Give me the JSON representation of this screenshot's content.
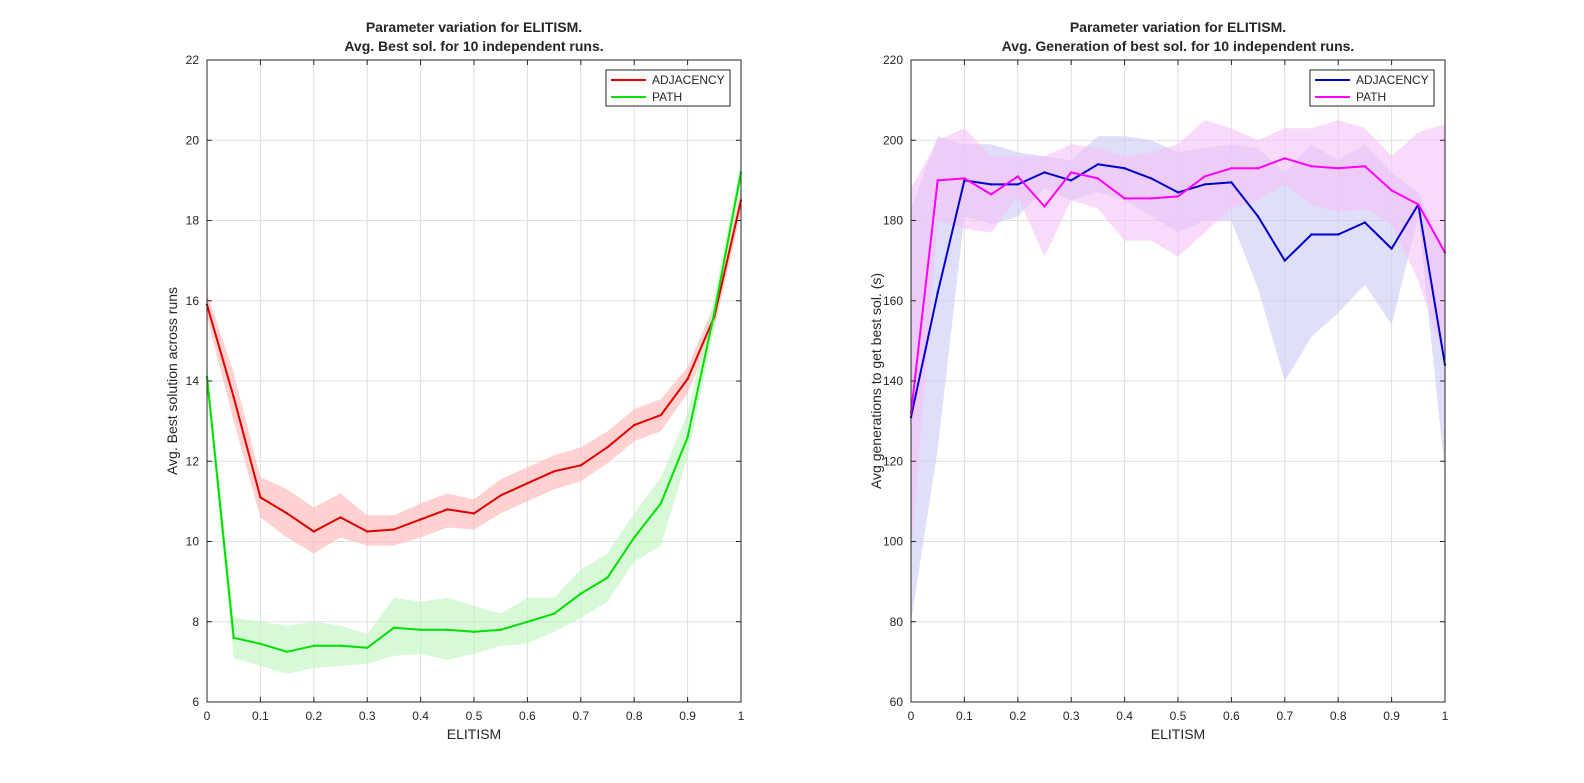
{
  "chart_data": [
    {
      "type": "line",
      "title": [
        "Parameter variation for ELITISM.",
        "Avg. Best sol. for 10 independent runs."
      ],
      "xlabel": "ELITISM",
      "ylabel": "Avg. Best solution across runs",
      "xlim": [
        0,
        1
      ],
      "ylim": [
        6,
        22
      ],
      "xticks": [
        0,
        0.1,
        0.2,
        0.3,
        0.4,
        0.5,
        0.6,
        0.7,
        0.8,
        0.9,
        1
      ],
      "yticks": [
        6,
        8,
        10,
        12,
        14,
        16,
        18,
        20,
        22
      ],
      "grid": true,
      "legend_position": "top-right",
      "x": [
        0,
        0.05,
        0.1,
        0.15,
        0.2,
        0.25,
        0.3,
        0.35,
        0.4,
        0.45,
        0.5,
        0.55,
        0.6,
        0.65,
        0.7,
        0.75,
        0.8,
        0.85,
        0.9,
        0.95,
        1
      ],
      "series": [
        {
          "name": "ADJACENCY",
          "color": "#e00000",
          "band_color": "#ffb3b3",
          "values": [
            15.9,
            13.6,
            11.1,
            10.7,
            10.25,
            10.6,
            10.25,
            10.3,
            10.55,
            10.8,
            10.7,
            11.15,
            11.45,
            11.75,
            11.9,
            12.35,
            12.9,
            13.15,
            14.05,
            15.6,
            18.5
          ],
          "upper": [
            16.2,
            14.2,
            11.6,
            11.3,
            10.85,
            11.2,
            10.65,
            10.65,
            10.95,
            11.2,
            11.05,
            11.55,
            11.85,
            12.15,
            12.35,
            12.75,
            13.3,
            13.55,
            14.35,
            15.9,
            18.8
          ],
          "lower": [
            15.6,
            13.0,
            10.6,
            10.1,
            9.7,
            10.1,
            9.9,
            9.9,
            10.1,
            10.35,
            10.3,
            10.7,
            11.0,
            11.3,
            11.5,
            11.95,
            12.5,
            12.75,
            13.7,
            15.3,
            18.2
          ]
        },
        {
          "name": "PATH",
          "color": "#00e000",
          "band_color": "#bdf5bd",
          "values": [
            14.1,
            7.6,
            7.45,
            7.25,
            7.4,
            7.4,
            7.35,
            7.85,
            7.8,
            7.8,
            7.75,
            7.8,
            8.0,
            8.2,
            8.7,
            9.1,
            10.1,
            10.95,
            12.6,
            15.7,
            19.2
          ],
          "upper": [
            14.4,
            8.1,
            8.0,
            7.9,
            8.0,
            7.9,
            7.7,
            8.6,
            8.5,
            8.6,
            8.4,
            8.2,
            8.6,
            8.6,
            9.3,
            9.7,
            10.7,
            11.6,
            13.2,
            16.1,
            19.5
          ],
          "lower": [
            13.8,
            7.1,
            6.9,
            6.7,
            6.85,
            6.9,
            6.95,
            7.15,
            7.2,
            7.05,
            7.2,
            7.4,
            7.45,
            7.75,
            8.1,
            8.5,
            9.5,
            9.9,
            12.1,
            15.3,
            18.9
          ]
        }
      ]
    },
    {
      "type": "line",
      "title": [
        "Parameter variation for ELITISM.",
        "Avg. Generation of best sol. for 10 independent runs."
      ],
      "xlabel": "ELITISM",
      "ylabel": "Avg generations to get best sol. (s)",
      "xlim": [
        0,
        1
      ],
      "ylim": [
        60,
        220
      ],
      "xticks": [
        0,
        0.1,
        0.2,
        0.3,
        0.4,
        0.5,
        0.6,
        0.7,
        0.8,
        0.9,
        1
      ],
      "yticks": [
        60,
        80,
        100,
        120,
        140,
        160,
        180,
        200,
        220
      ],
      "grid": true,
      "legend_position": "top-right",
      "x": [
        0,
        0.05,
        0.1,
        0.15,
        0.2,
        0.25,
        0.3,
        0.35,
        0.4,
        0.45,
        0.5,
        0.55,
        0.6,
        0.65,
        0.7,
        0.75,
        0.8,
        0.85,
        0.9,
        0.95,
        1
      ],
      "series": [
        {
          "name": "ADJACENCY",
          "color": "#0000cc",
          "band_color": "#c9c9f7",
          "values": [
            131,
            162,
            190,
            189,
            189,
            192,
            190,
            194,
            193,
            190.5,
            187,
            189,
            189.5,
            181,
            170,
            176.5,
            176.5,
            179.5,
            173,
            184,
            144
          ],
          "upper": [
            183,
            201,
            199,
            199,
            197,
            196,
            195,
            201,
            201,
            200,
            197,
            198,
            199,
            198,
            192,
            199,
            195,
            199,
            192,
            187,
            172
          ],
          "lower": [
            80,
            123,
            181,
            179,
            181,
            188,
            185,
            187,
            185,
            181,
            177,
            180,
            180,
            163,
            140,
            151,
            157,
            164,
            154,
            181,
            117
          ]
        },
        {
          "name": "PATH",
          "color": "#ff00ff",
          "band_color": "#f7c2f7",
          "values": [
            132,
            190,
            190.5,
            186.5,
            191,
            183.5,
            192,
            190.5,
            185.5,
            185.5,
            186,
            191,
            193,
            193,
            195.5,
            193.5,
            193,
            193.5,
            187.5,
            184,
            172
          ],
          "upper": [
            188,
            200,
            203,
            196,
            196,
            196,
            199,
            198,
            196,
            197,
            199,
            205,
            203,
            200,
            203,
            203,
            205,
            203,
            196,
            202,
            204
          ],
          "lower": [
            96,
            180,
            178,
            177,
            186,
            171,
            185,
            183,
            175,
            175,
            171,
            177,
            183,
            185,
            189,
            184,
            182,
            183,
            179,
            165,
            145
          ]
        }
      ]
    }
  ]
}
